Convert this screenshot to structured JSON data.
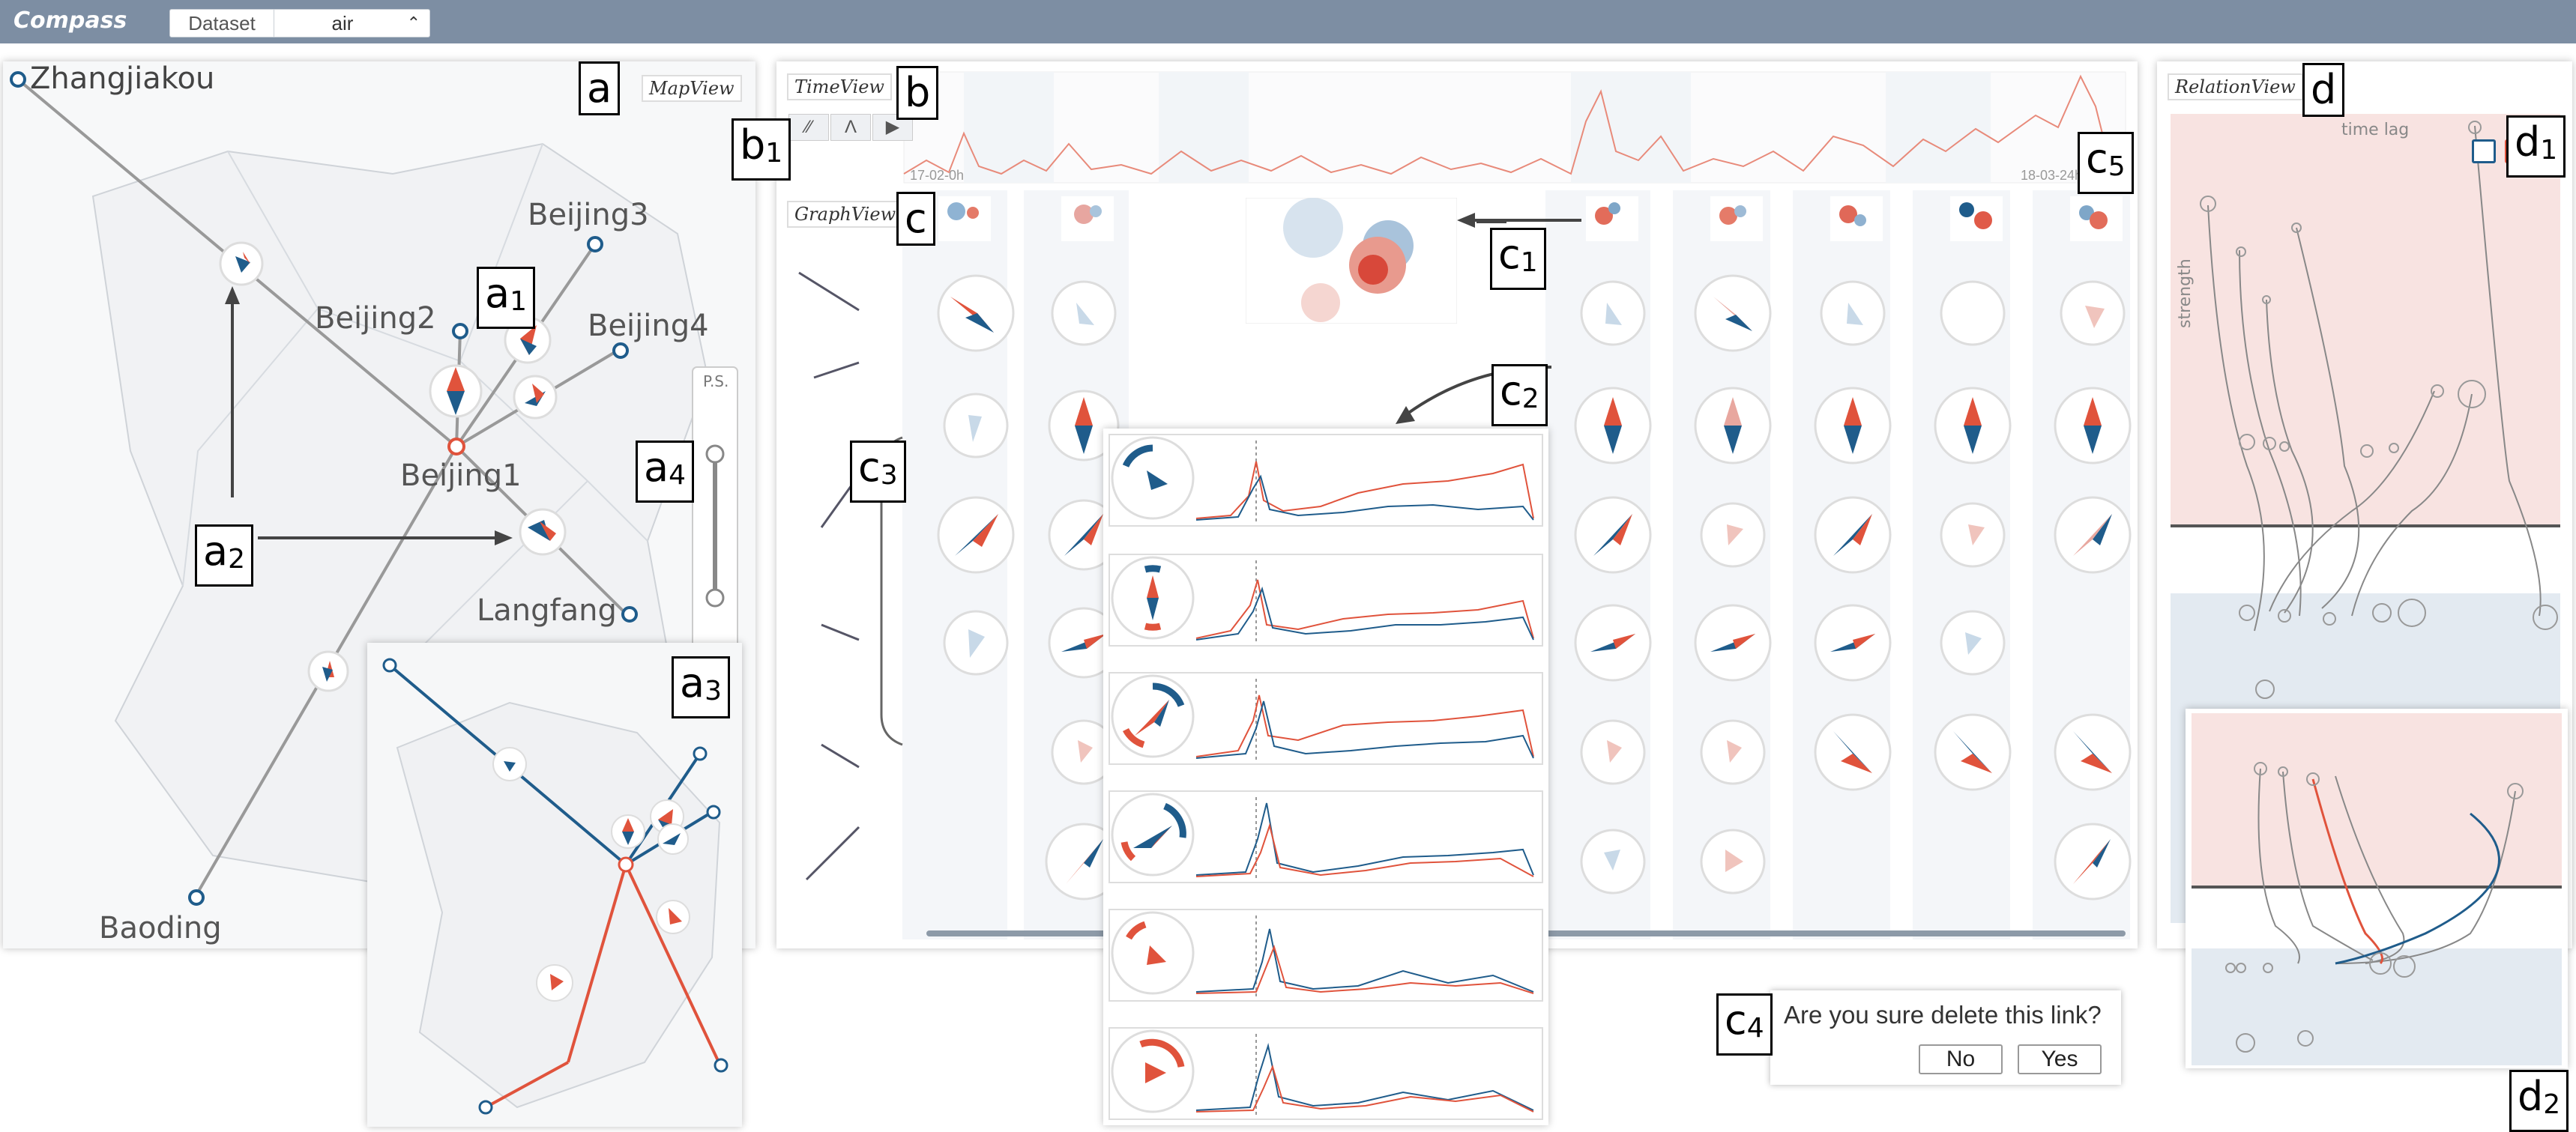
{
  "app": {
    "title": "Compass"
  },
  "dataset": {
    "label": "Dataset",
    "value": "air"
  },
  "map_view": {
    "label": "MapView",
    "slider_label": "P.S.",
    "cities": [
      "Zhangjiakou",
      "Beijing3",
      "Beijing2",
      "Beijing4",
      "Beijing1",
      "Langfang",
      "Baoding"
    ]
  },
  "time_view": {
    "label": "TimeView",
    "start": "17-02-0h",
    "end": "18-03-24h"
  },
  "graph_view": {
    "label": "GraphView"
  },
  "relation_view": {
    "label": "RelationView",
    "x_axis": "time lag",
    "y_axis": "strength"
  },
  "dialog": {
    "message": "Are you sure delete this link?",
    "no": "No",
    "yes": "Yes"
  },
  "tags": {
    "a": "a",
    "a1": "a",
    "a2": "a",
    "a3": "a",
    "a4": "a",
    "b": "b",
    "b1": "b",
    "c": "c",
    "c1": "c",
    "c2": "c",
    "c3": "c",
    "c4": "c",
    "c5": "c",
    "d": "d",
    "d1": "d",
    "d2": "d",
    "n1": "1",
    "n2": "2",
    "n3": "3",
    "n4": "4",
    "n5": "5"
  },
  "colors": {
    "red": "#e0533c",
    "blue": "#1f5c8b",
    "header": "#7d8ea3"
  }
}
